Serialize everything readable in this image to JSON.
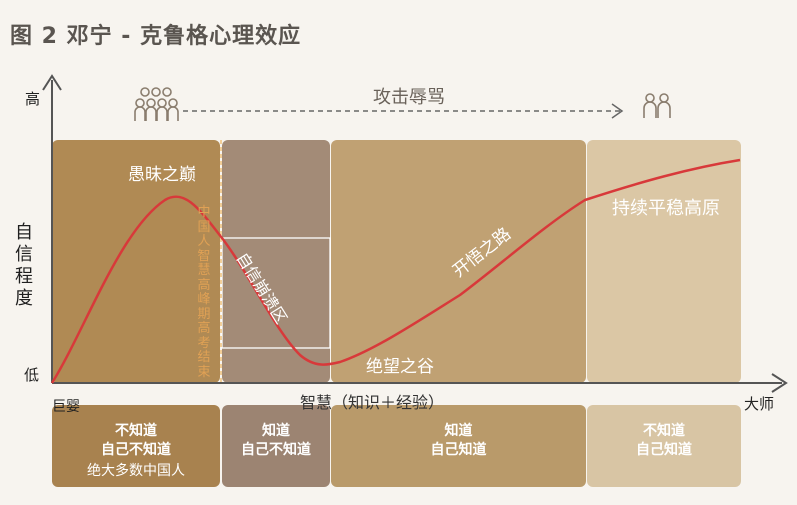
{
  "title": "图 2  邓宁 - 克鲁格心理效应",
  "axes": {
    "y_label": "自信程度",
    "y_high": "高",
    "y_low": "低",
    "x_label": "智慧（知识＋经验）",
    "x_start": "巨婴",
    "x_end": "大师"
  },
  "top_arrow_label": "攻击辱骂",
  "icons": [
    "group-people-icon",
    "two-people-icon"
  ],
  "curve_labels": {
    "peak": "愚昧之巅",
    "collapse": "自信崩溃区",
    "valley": "绝望之谷",
    "slope": "开悟之路",
    "plateau": "持续平稳高原"
  },
  "vertical_note": "中国人智慧高峰期高考结束",
  "bands": [
    {
      "line1": "不知道",
      "line2": "自己不知道",
      "sub": "绝大多数中国人",
      "color": "#a8824f"
    },
    {
      "line1": "知道",
      "line2": "自己不知道",
      "sub": "",
      "color": "#9c8472"
    },
    {
      "line1": "知道",
      "line2": "自己知道",
      "sub": "",
      "color": "#b99a6a"
    },
    {
      "line1": "不知道",
      "line2": "自己知道",
      "sub": "",
      "color": "#d8c5a4"
    }
  ],
  "colors": {
    "curve": "#d8393a",
    "axis": "#555555",
    "band_text": "#ffffff"
  }
}
